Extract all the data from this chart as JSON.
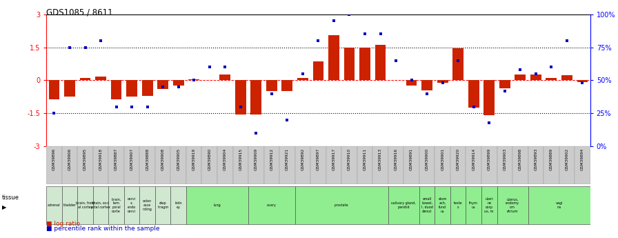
{
  "title": "GDS1085 / 8611",
  "samples": [
    "GSM39896",
    "GSM39906",
    "GSM39895",
    "GSM39918",
    "GSM39887",
    "GSM39907",
    "GSM39888",
    "GSM39908",
    "GSM39905",
    "GSM39919",
    "GSM39890",
    "GSM39904",
    "GSM39915",
    "GSM39909",
    "GSM39912",
    "GSM39921",
    "GSM39892",
    "GSM39897",
    "GSM39917",
    "GSM39910",
    "GSM39911",
    "GSM39913",
    "GSM39916",
    "GSM39891",
    "GSM39900",
    "GSM39901",
    "GSM39920",
    "GSM39914",
    "GSM39899",
    "GSM39903",
    "GSM39898",
    "GSM39893",
    "GSM39889",
    "GSM39902",
    "GSM39894"
  ],
  "log_ratio": [
    -0.85,
    -0.75,
    0.12,
    0.18,
    -0.85,
    -0.75,
    -0.7,
    -0.4,
    -0.25,
    0.04,
    0.0,
    0.25,
    -1.55,
    -1.55,
    -0.48,
    -0.48,
    0.1,
    0.85,
    2.05,
    1.5,
    1.5,
    1.6,
    0.0,
    -0.25,
    -0.45,
    -0.1,
    1.45,
    -1.25,
    -1.6,
    -0.35,
    0.28,
    0.25,
    0.12,
    0.22,
    -0.08
  ],
  "pct_rank_val": [
    25,
    75,
    75,
    80,
    30,
    30,
    30,
    45,
    45,
    50,
    60,
    60,
    30,
    10,
    40,
    20,
    55,
    80,
    95,
    100,
    85,
    85,
    65,
    50,
    40,
    48,
    65,
    30,
    18,
    42,
    58,
    55,
    60,
    80,
    48
  ],
  "tissue_groups": [
    {
      "label": "adrenal",
      "start": 0,
      "end": 1,
      "color": "#d0e8d0"
    },
    {
      "label": "bladder",
      "start": 1,
      "end": 2,
      "color": "#d0e8d0"
    },
    {
      "label": "brain, front\nal cortex",
      "start": 2,
      "end": 3,
      "color": "#d0e8d0"
    },
    {
      "label": "brain, occi\npital cortex",
      "start": 3,
      "end": 4,
      "color": "#d0e8d0"
    },
    {
      "label": "brain,\ntem\nporal\ncorte",
      "start": 4,
      "end": 5,
      "color": "#d0e8d0"
    },
    {
      "label": "cervi\nx,\nendo\ncervi",
      "start": 5,
      "end": 6,
      "color": "#d0e8d0"
    },
    {
      "label": "colon\nasce\nnding",
      "start": 6,
      "end": 7,
      "color": "#d0e8d0"
    },
    {
      "label": "diap\nhragm",
      "start": 7,
      "end": 8,
      "color": "#d0e8d0"
    },
    {
      "label": "kidn\ney",
      "start": 8,
      "end": 9,
      "color": "#d0e8d0"
    },
    {
      "label": "lung",
      "start": 9,
      "end": 13,
      "color": "#90ee90"
    },
    {
      "label": "ovary",
      "start": 13,
      "end": 16,
      "color": "#90ee90"
    },
    {
      "label": "prostate",
      "start": 16,
      "end": 22,
      "color": "#90ee90"
    },
    {
      "label": "salivary gland,\nparotid",
      "start": 22,
      "end": 24,
      "color": "#90ee90"
    },
    {
      "label": "small\nbowel,\nI, duod\ndenut",
      "start": 24,
      "end": 25,
      "color": "#90ee90"
    },
    {
      "label": "stom\nach,\nfund\nus",
      "start": 25,
      "end": 26,
      "color": "#90ee90"
    },
    {
      "label": "teste\ns",
      "start": 26,
      "end": 27,
      "color": "#90ee90"
    },
    {
      "label": "thym\nus",
      "start": 27,
      "end": 28,
      "color": "#90ee90"
    },
    {
      "label": "uteri\nne\ncorp\nus, m",
      "start": 28,
      "end": 29,
      "color": "#90ee90"
    },
    {
      "label": "uterus,\nendomy\nom\netrium",
      "start": 29,
      "end": 31,
      "color": "#90ee90"
    },
    {
      "label": "vagi\nna",
      "start": 31,
      "end": 35,
      "color": "#90ee90"
    }
  ],
  "ylim": [
    -3,
    3
  ],
  "bar_color": "#cc2200",
  "dot_color": "#0000bb",
  "bg_color": "#ffffff",
  "sample_bg_even": "#cccccc",
  "sample_bg_odd": "#bbbbbb"
}
